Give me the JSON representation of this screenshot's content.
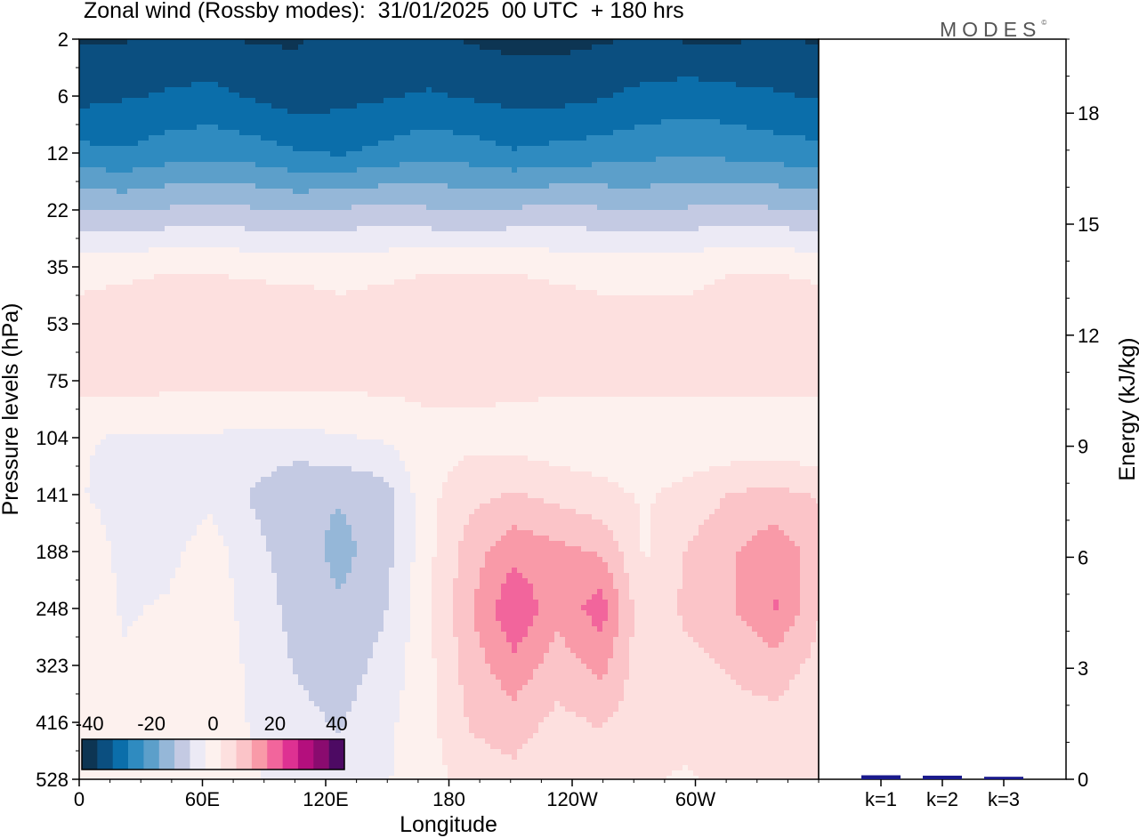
{
  "title": "Zonal wind (Rossby modes):  31/01/2025  00 UTC  + 180 hrs",
  "logo": "MODES",
  "logo_mark": "©",
  "chart_data": [
    {
      "type": "heatmap",
      "xlabel": "Longitude",
      "ylabel": "Pressure levels (hPa)",
      "x_ticks": [
        {
          "lon": 0,
          "label": "0"
        },
        {
          "lon": 60,
          "label": "60E"
        },
        {
          "lon": 120,
          "label": "120E"
        },
        {
          "lon": 180,
          "label": "180"
        },
        {
          "lon": 240,
          "label": "120W"
        },
        {
          "lon": 300,
          "label": "60W"
        }
      ],
      "xlim": [
        0,
        360
      ],
      "y_levels": [
        "2",
        "6",
        "12",
        "22",
        "35",
        "53",
        "75",
        "104",
        "141",
        "188",
        "248",
        "323",
        "416",
        "528"
      ],
      "colorbar": {
        "labels": [
          "-40",
          "-20",
          "0",
          "20",
          "40"
        ],
        "colors": [
          "#0d3553",
          "#0b4f80",
          "#0b6eaa",
          "#2f8bc0",
          "#5c9fca",
          "#95b7d8",
          "#c4cae3",
          "#eceaf5",
          "#fdf1ee",
          "#fde0df",
          "#fbc4c8",
          "#f99aa8",
          "#f2659c",
          "#de3192",
          "#b40f7d",
          "#8a0b6f",
          "#4d0a63"
        ]
      },
      "field_description_levels": {
        "row_values": [
          [
            -38,
            -38,
            -36,
            -37,
            -38,
            -38,
            -36,
            -35,
            -36,
            -38,
            -39,
            -39,
            -38,
            -37,
            -38,
            -38,
            -37,
            -38
          ],
          [
            -34,
            -33,
            -32,
            -31,
            -33,
            -35,
            -34,
            -33,
            -32,
            -33,
            -34,
            -34,
            -33,
            -31,
            -30,
            -31,
            -32,
            -33
          ],
          [
            -26,
            -27,
            -25,
            -24,
            -25,
            -27,
            -28,
            -26,
            -24,
            -25,
            -27,
            -26,
            -25,
            -24,
            -23,
            -24,
            -25,
            -26
          ],
          [
            -12,
            -13,
            -12,
            -11,
            -12,
            -13,
            -12,
            -11,
            -12,
            -13,
            -12,
            -11,
            -12,
            -13,
            -12,
            -11,
            -12,
            -12
          ],
          [
            1,
            1,
            2,
            2,
            1,
            1,
            1,
            1,
            2,
            2,
            2,
            1,
            1,
            1,
            1,
            2,
            2,
            1
          ],
          [
            4,
            6,
            6,
            7,
            7,
            6,
            4,
            6,
            6,
            7,
            7,
            6,
            4,
            4,
            4,
            6,
            7,
            6
          ],
          [
            4,
            5,
            4,
            4,
            4,
            4,
            4,
            4,
            4,
            4,
            4,
            4,
            4,
            4,
            4,
            4,
            4,
            4
          ],
          [
            -2,
            -3,
            -3,
            -3,
            -4,
            -4,
            -3,
            -2,
            1,
            1,
            0,
            -1,
            -1,
            -2,
            -1,
            -2,
            -2,
            -2
          ],
          [
            -2,
            -5,
            -6,
            -4,
            -8,
            -12,
            -12,
            -10,
            1,
            6,
            8,
            6,
            4,
            2,
            4,
            8,
            9,
            7
          ],
          [
            2,
            -4,
            -4,
            0,
            -6,
            -10,
            -14,
            -10,
            1,
            10,
            16,
            14,
            12,
            2,
            8,
            12,
            16,
            10
          ],
          [
            2,
            -3,
            -2,
            1,
            -5,
            -9,
            -12,
            -8,
            1,
            12,
            22,
            14,
            20,
            3,
            9,
            12,
            18,
            8
          ],
          [
            1,
            -2,
            -1,
            2,
            -4,
            -8,
            -10,
            -6,
            1,
            10,
            16,
            10,
            14,
            4,
            6,
            8,
            10,
            6
          ],
          [
            1,
            -1,
            -1,
            1,
            -3,
            -6,
            -8,
            -4,
            1,
            8,
            10,
            6,
            8,
            4,
            4,
            6,
            6,
            4
          ],
          [
            0,
            -1,
            -1,
            0,
            -2,
            -5,
            -6,
            -3,
            0,
            5,
            6,
            3,
            4,
            3,
            2,
            4,
            4,
            3
          ]
        ]
      },
      "side_panel": {
        "type": "bar",
        "ylabel": "Energy (kJ/kg)",
        "ylim": [
          0,
          20
        ],
        "y_ticks": [
          "0",
          "3",
          "6",
          "9",
          "12",
          "15",
          "18"
        ],
        "categories": [
          "k=1",
          "k=2",
          "k=3"
        ],
        "values": [
          0.06,
          0.05,
          0.02
        ],
        "bar_color": "#1a1a8c"
      }
    }
  ]
}
